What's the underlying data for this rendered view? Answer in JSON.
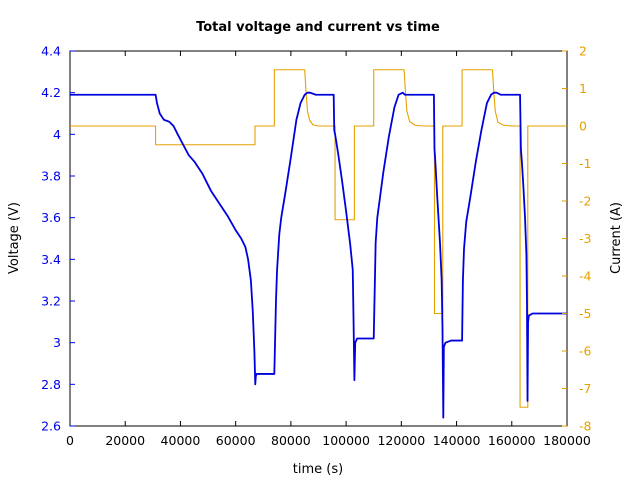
{
  "chart_data": {
    "type": "line",
    "title": "Total voltage and current vs time",
    "xlabel": "time (s)",
    "ylabel": "Voltage (V)",
    "y2label": "Current (A)",
    "xlim": [
      0,
      180000
    ],
    "ylim": [
      2.6,
      4.4
    ],
    "y2lim": [
      -8,
      2
    ],
    "xticks": [
      0,
      20000,
      40000,
      60000,
      80000,
      100000,
      120000,
      140000,
      160000,
      180000
    ],
    "xtick_labels": [
      "0",
      "20000",
      "40000",
      "60000",
      "80000",
      "100000",
      "120000",
      "140000",
      "160000",
      "180000"
    ],
    "yticks": [
      2.6,
      2.8,
      3,
      3.2,
      3.4,
      3.6,
      3.8,
      4,
      4.2,
      4.4
    ],
    "ytick_labels": [
      "2.6",
      "2.8",
      "3",
      "3.2",
      "3.4",
      "3.6",
      "3.8",
      "4",
      "4.2",
      "4.4"
    ],
    "y2ticks": [
      -8,
      -7,
      -6,
      -5,
      -4,
      -3,
      -2,
      -1,
      0,
      1,
      2
    ],
    "y2tick_labels": [
      "-8",
      "-7",
      "-6",
      "-5",
      "-4",
      "-3",
      "-2",
      "-1",
      "0",
      "1",
      "2"
    ],
    "grid": false,
    "colors": {
      "voltage": "#0000dd",
      "current": "#e6a100",
      "left_axis": "#0000ee",
      "right_axis": "#e6a100"
    },
    "series": [
      {
        "axis": "left",
        "x": [
          0,
          31000,
          31500,
          32500,
          34000,
          36000,
          37500,
          39000,
          41000,
          43000,
          45000,
          48000,
          51000,
          54000,
          57000,
          60000,
          62000,
          63500,
          64500,
          65500,
          66200,
          66800,
          67100,
          67300,
          67600,
          68500,
          70000,
          72000,
          74000,
          74600,
          75000,
          75800,
          76500,
          78000,
          80000,
          82000,
          83500,
          85000,
          86000,
          87000,
          89000,
          91000,
          93000,
          94500,
          95500,
          95700,
          96000,
          96500,
          97200,
          98500,
          100000,
          101500,
          102400,
          102700,
          103000,
          103300,
          104000,
          105500,
          108000,
          110000,
          110400,
          110700,
          111300,
          112000,
          113500,
          115500,
          117500,
          119000,
          120500,
          121300,
          122000,
          123500,
          126000,
          128000,
          130000,
          131800,
          132000,
          132300,
          133000,
          134000,
          134600,
          134900,
          135200,
          135400,
          136000,
          138000,
          140000,
          142000,
          142300,
          142700,
          143500,
          145000,
          147000,
          149000,
          151000,
          152500,
          153500,
          154500,
          156000,
          158000,
          159500,
          160500,
          162000,
          163000,
          163300,
          163700,
          164200,
          164800,
          165300,
          165500,
          165700,
          165900,
          166200,
          167500,
          170000,
          173000,
          176000,
          178000,
          180000
        ],
        "y": [
          4.19,
          4.19,
          4.15,
          4.1,
          4.07,
          4.06,
          4.04,
          4.0,
          3.95,
          3.9,
          3.87,
          3.81,
          3.73,
          3.67,
          3.61,
          3.54,
          3.5,
          3.46,
          3.4,
          3.3,
          3.15,
          2.95,
          2.8,
          2.84,
          2.85,
          2.85,
          2.85,
          2.85,
          2.85,
          3.2,
          3.35,
          3.52,
          3.6,
          3.72,
          3.89,
          4.07,
          4.15,
          4.19,
          4.2,
          4.2,
          4.19,
          4.19,
          4.19,
          4.19,
          4.19,
          4.02,
          4.0,
          3.96,
          3.9,
          3.78,
          3.63,
          3.47,
          3.35,
          3.1,
          2.82,
          3.0,
          3.02,
          3.02,
          3.02,
          3.02,
          3.28,
          3.48,
          3.6,
          3.67,
          3.82,
          3.99,
          4.13,
          4.19,
          4.2,
          4.19,
          4.19,
          4.19,
          4.19,
          4.19,
          4.19,
          4.19,
          3.93,
          3.87,
          3.7,
          3.48,
          3.3,
          3.08,
          2.64,
          2.98,
          3.0,
          3.01,
          3.01,
          3.01,
          3.3,
          3.45,
          3.58,
          3.7,
          3.87,
          4.02,
          4.15,
          4.19,
          4.2,
          4.2,
          4.19,
          4.19,
          4.19,
          4.19,
          4.19,
          4.19,
          3.93,
          3.86,
          3.75,
          3.6,
          3.42,
          3.2,
          2.72,
          3.1,
          3.13,
          3.14,
          3.14,
          3.14,
          3.14,
          3.14,
          3.14
        ]
      },
      {
        "axis": "right",
        "x": [
          0,
          31000,
          31000,
          67000,
          67000,
          74000,
          74000,
          85000,
          85500,
          86000,
          86800,
          88000,
          90000,
          96000,
          96000,
          103000,
          103000,
          110000,
          110000,
          121000,
          121500,
          122000,
          123000,
          125000,
          128000,
          132000,
          132000,
          135000,
          135000,
          142000,
          142000,
          153000,
          153500,
          154000,
          155000,
          157000,
          160000,
          163000,
          163000,
          165800,
          165800,
          180000
        ],
        "y": [
          0,
          0,
          -0.5,
          -0.5,
          0,
          0,
          1.5,
          1.5,
          0.9,
          0.4,
          0.15,
          0.03,
          0,
          0,
          -2.5,
          -2.5,
          0,
          0,
          1.5,
          1.5,
          0.9,
          0.4,
          0.12,
          0.02,
          0,
          0,
          -5,
          -5,
          0,
          0,
          1.5,
          1.5,
          0.9,
          0.4,
          0.1,
          0.02,
          0,
          0,
          -7.5,
          -7.5,
          0,
          0
        ]
      }
    ]
  }
}
